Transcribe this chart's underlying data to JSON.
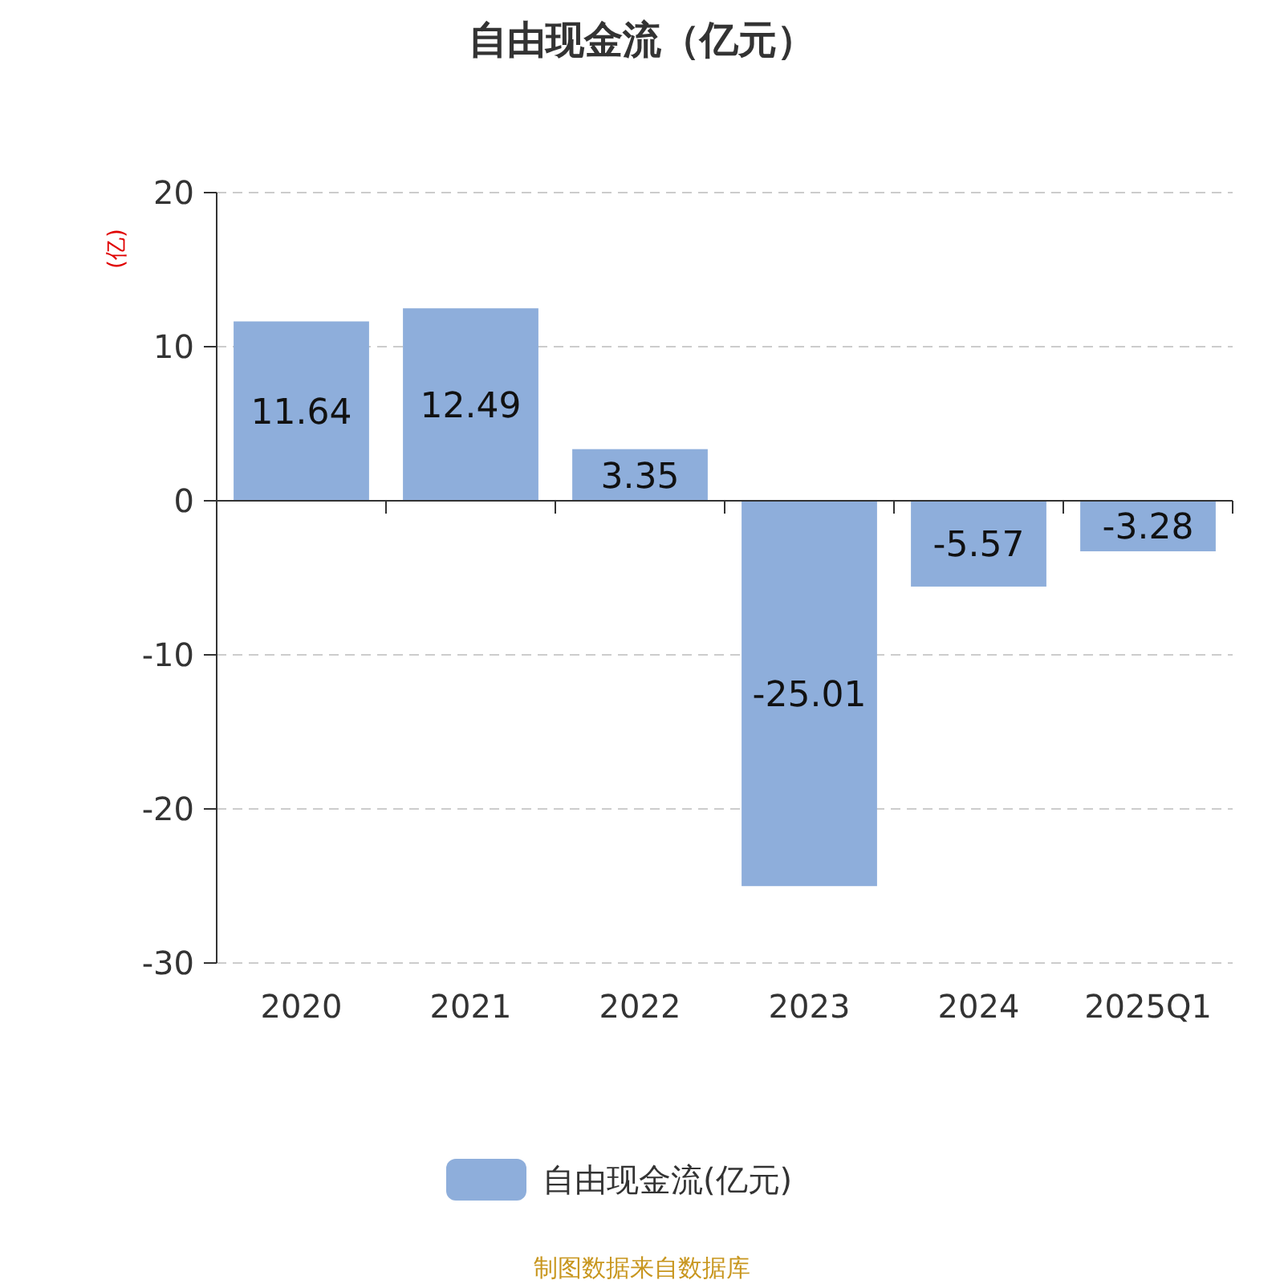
{
  "chart_data": {
    "type": "bar",
    "title": "自由现金流（亿元）",
    "ylabel": "(亿)",
    "categories": [
      "2020",
      "2021",
      "2022",
      "2023",
      "2024",
      "2025Q1"
    ],
    "series": [
      {
        "name": "自由现金流(亿元)",
        "color": "#8eaedb",
        "values": [
          11.64,
          12.49,
          3.35,
          -25.01,
          -5.57,
          -3.28
        ]
      }
    ],
    "ylim": [
      -30,
      20
    ],
    "yticks": [
      -30,
      -20,
      -10,
      0,
      10,
      20
    ],
    "grid": "y",
    "legend": "bottom",
    "data_labels": true,
    "annotations": [
      "制图数据来自数据库"
    ]
  }
}
